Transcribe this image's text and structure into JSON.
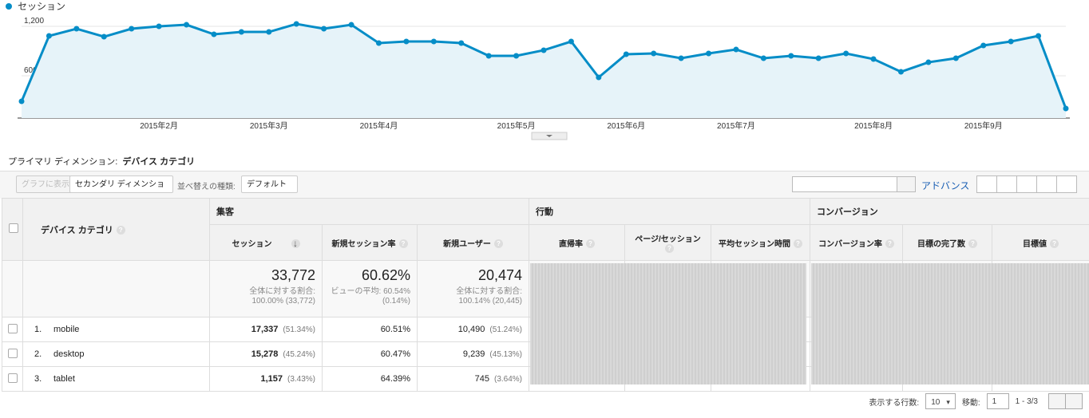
{
  "chart_data": {
    "type": "line",
    "legend_position": "top-left",
    "grid": true,
    "categories": [
      null,
      null,
      null,
      null,
      null,
      "2015年2月",
      null,
      null,
      null,
      "2015年3月",
      null,
      null,
      null,
      "2015年4月",
      null,
      null,
      null,
      null,
      "2015年5月",
      null,
      null,
      null,
      "2015年6月",
      null,
      null,
      null,
      "2015年7月",
      null,
      null,
      null,
      null,
      "2015年8月",
      null,
      null,
      null,
      "2015年9月",
      null,
      null,
      null
    ],
    "series": [
      {
        "name": "セッション",
        "color": "#058dc7",
        "fill": "#e6f3f9",
        "values": [
          290,
          1084,
          1171,
          1074,
          1171,
          1200,
          1219,
          1103,
          1132,
          1132,
          1229,
          1171,
          1219,
          997,
          1016,
          1016,
          997,
          842,
          842,
          910,
          1016,
          581,
          861,
          871,
          813,
          871,
          919,
          813,
          842,
          813,
          871,
          803,
          648,
          764,
          813,
          968,
          1016,
          1084,
          203
        ]
      }
    ],
    "ylim": [
      0,
      1300
    ],
    "yticks": [
      600,
      {
        "value": 1200,
        "label": "1,200"
      }
    ]
  },
  "dimension": {
    "label": "プライマリ ディメンション:",
    "value": "デバイス カテゴリ"
  },
  "toolbar": {
    "plot_button": "グラフに表示",
    "secondary": "セカンダリ ディメンション",
    "sort_label": "並べ替えの種類:",
    "sort_value": "デフォルト",
    "advanced": "アドバンス"
  },
  "table": {
    "groups": [
      "集客",
      "行動",
      "コンバージョン"
    ],
    "columns": [
      "デバイス カテゴリ",
      "セッション",
      "新規セッション率",
      "新規ユーザー",
      "直帰率",
      "ページ/セッション",
      "平均セッション時間",
      "コンバージョン率",
      "目標の完了数",
      "目標値"
    ],
    "totals": [
      {
        "value": "33,772",
        "notes": [
          "全体に対する割合:",
          "100.00% (33,772)"
        ]
      },
      {
        "value": "60.62%",
        "notes": [
          "ビューの平均: 60.54%",
          "(0.14%)"
        ]
      },
      {
        "value": "20,474",
        "notes": [
          "全体に対する割合:",
          "100.14% (20,445)"
        ]
      }
    ],
    "rows": [
      {
        "index": "1.",
        "name": "mobile",
        "sessions": "17,337",
        "sessions_share": "(51.34%)",
        "new_rate": "60.51%",
        "new_users": "10,490",
        "new_users_share": "(51.24%)"
      },
      {
        "index": "2.",
        "name": "desktop",
        "sessions": "15,278",
        "sessions_share": "(45.24%)",
        "new_rate": "60.47%",
        "new_users": "9,239",
        "new_users_share": "(45.13%)"
      },
      {
        "index": "3.",
        "name": "tablet",
        "sessions": "1,157",
        "sessions_share": "(3.43%)",
        "new_rate": "64.39%",
        "new_users": "745",
        "new_users_share": "(3.64%)"
      }
    ]
  },
  "pagination": {
    "rows_label": "表示する行数:",
    "rows_value": "10",
    "goto_label": "移動:",
    "goto_value": "1",
    "range": "1 - 3/3"
  }
}
